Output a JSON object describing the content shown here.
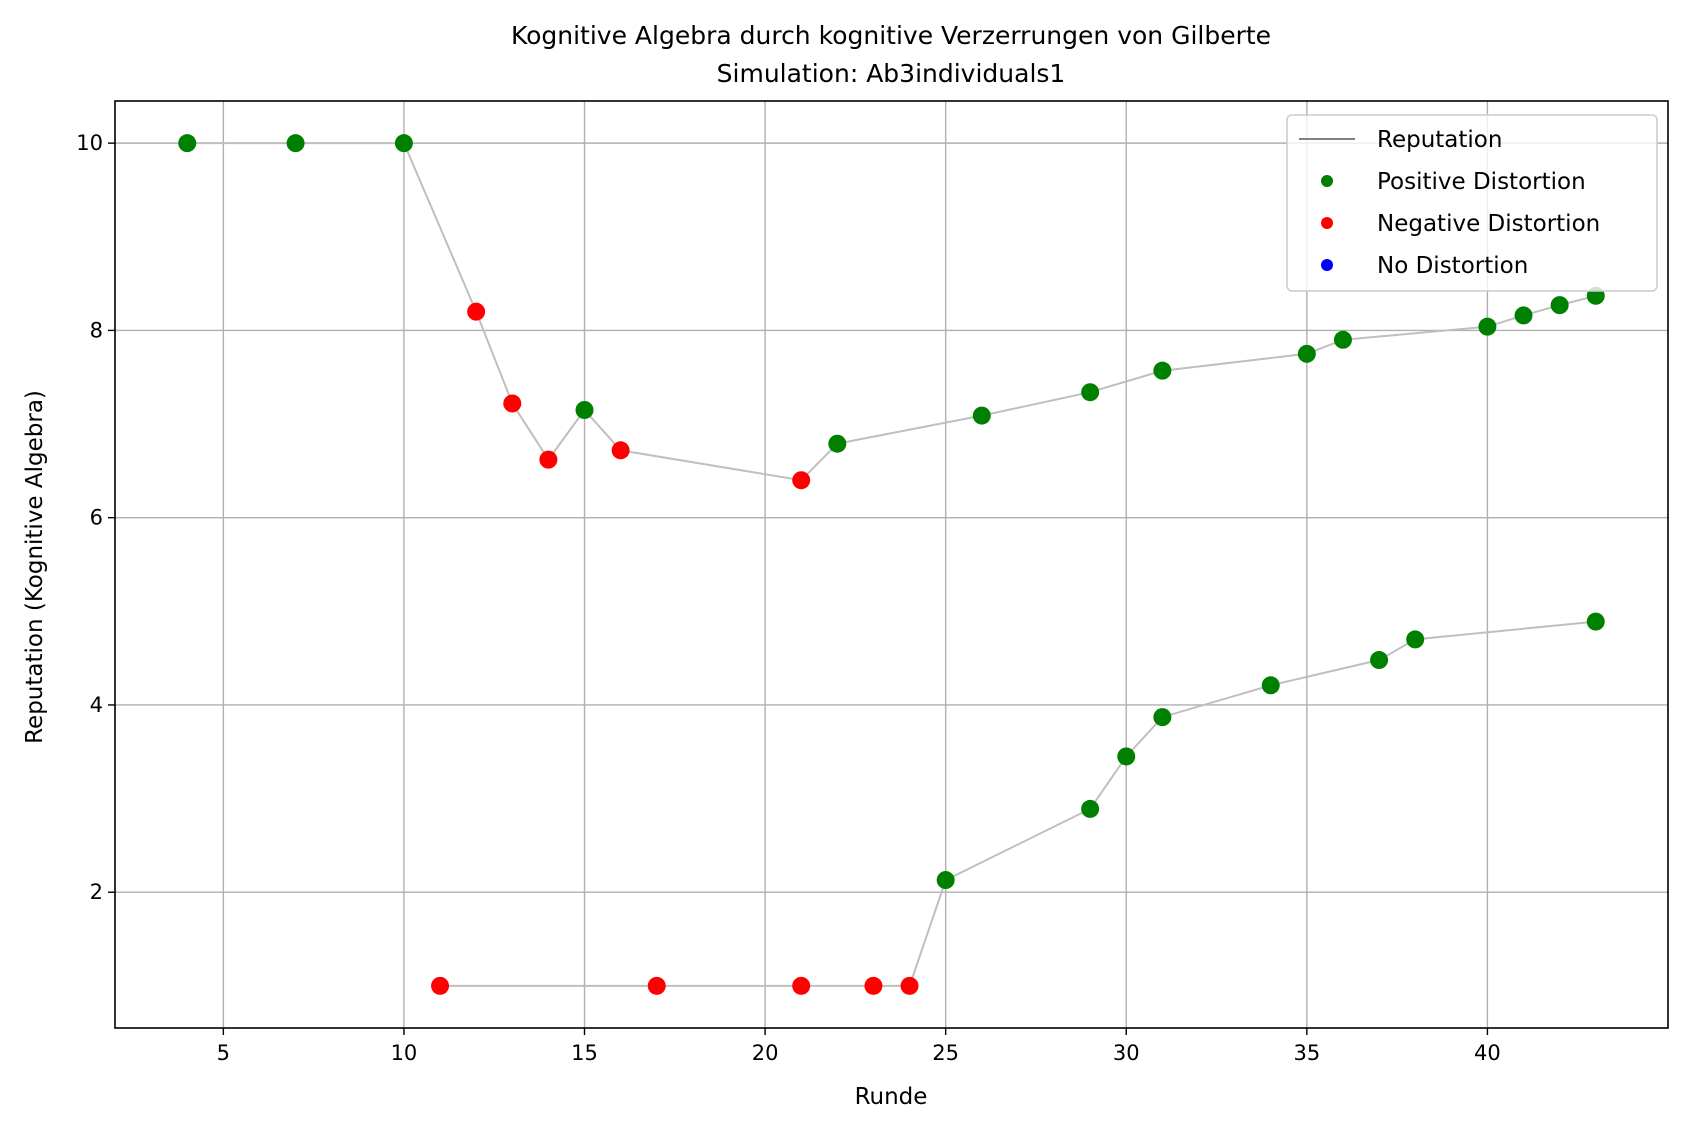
{
  "chart_data": {
    "type": "scatter",
    "title": "Kognitive Algebra durch kognitive Verzerrungen von Gilberte",
    "subtitle": "Simulation: Ab3individuals1",
    "xlabel": "Runde",
    "ylabel": "Reputation (Kognitive Algebra)",
    "xlim": [
      2,
      45
    ],
    "ylim": [
      0.55,
      10.45
    ],
    "xticks": [
      5,
      10,
      15,
      20,
      25,
      30,
      35,
      40
    ],
    "yticks": [
      2,
      4,
      6,
      8,
      10
    ],
    "grid": true,
    "legend_position": "top-right",
    "colors": {
      "line": "#bfbfbf",
      "legend_line": "#808080",
      "positive": "#008000",
      "negative": "#ff0000",
      "none": "#0000ff",
      "grid": "#b0b0b0"
    },
    "legend": [
      {
        "label": "Reputation",
        "kind": "line",
        "color": "#808080"
      },
      {
        "label": "Positive Distortion",
        "kind": "marker",
        "color": "#008000"
      },
      {
        "label": "Negative Distortion",
        "kind": "marker",
        "color": "#ff0000"
      },
      {
        "label": "No Distortion",
        "kind": "marker",
        "color": "#0000ff"
      }
    ],
    "series": [
      {
        "points": [
          {
            "x": 4,
            "y": 10.0,
            "d": "positive"
          },
          {
            "x": 7,
            "y": 10.0,
            "d": "positive"
          },
          {
            "x": 10,
            "y": 10.0,
            "d": "positive"
          },
          {
            "x": 12,
            "y": 8.2,
            "d": "negative"
          },
          {
            "x": 13,
            "y": 7.22,
            "d": "negative"
          },
          {
            "x": 14,
            "y": 6.62,
            "d": "negative"
          },
          {
            "x": 15,
            "y": 7.15,
            "d": "positive"
          },
          {
            "x": 16,
            "y": 6.72,
            "d": "negative"
          },
          {
            "x": 21,
            "y": 6.4,
            "d": "negative"
          },
          {
            "x": 22,
            "y": 6.79,
            "d": "positive"
          },
          {
            "x": 26,
            "y": 7.09,
            "d": "positive"
          },
          {
            "x": 29,
            "y": 7.34,
            "d": "positive"
          },
          {
            "x": 31,
            "y": 7.57,
            "d": "positive"
          },
          {
            "x": 35,
            "y": 7.75,
            "d": "positive"
          },
          {
            "x": 36,
            "y": 7.9,
            "d": "positive"
          },
          {
            "x": 40,
            "y": 8.04,
            "d": "positive"
          },
          {
            "x": 41,
            "y": 8.16,
            "d": "positive"
          },
          {
            "x": 42,
            "y": 8.27,
            "d": "positive"
          },
          {
            "x": 43,
            "y": 8.37,
            "d": "positive"
          }
        ]
      },
      {
        "points": [
          {
            "x": 11,
            "y": 1.0,
            "d": "negative"
          },
          {
            "x": 17,
            "y": 1.0,
            "d": "negative"
          },
          {
            "x": 21,
            "y": 1.0,
            "d": "negative"
          },
          {
            "x": 23,
            "y": 1.0,
            "d": "negative"
          },
          {
            "x": 24,
            "y": 1.0,
            "d": "negative"
          },
          {
            "x": 25,
            "y": 2.13,
            "d": "positive"
          },
          {
            "x": 29,
            "y": 2.89,
            "d": "positive"
          },
          {
            "x": 30,
            "y": 3.45,
            "d": "positive"
          },
          {
            "x": 31,
            "y": 3.87,
            "d": "positive"
          },
          {
            "x": 34,
            "y": 4.21,
            "d": "positive"
          },
          {
            "x": 37,
            "y": 4.48,
            "d": "positive"
          },
          {
            "x": 38,
            "y": 4.7,
            "d": "positive"
          },
          {
            "x": 43,
            "y": 4.89,
            "d": "positive"
          }
        ]
      }
    ]
  }
}
